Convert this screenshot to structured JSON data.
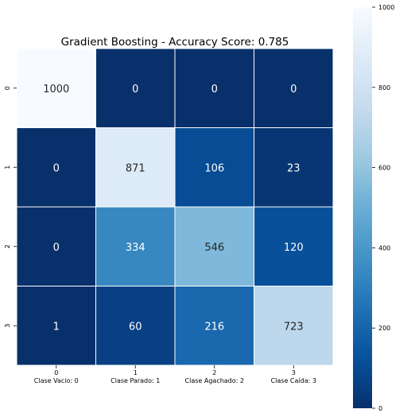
{
  "chart_data": {
    "type": "heatmap",
    "title": "Gradient Boosting - Accuracy Score: 0.785",
    "row_labels": [
      "0",
      "1",
      "2",
      "3"
    ],
    "col_labels": [
      "0\nClase Vacio: 0",
      "1\nClase Parado: 1",
      "2\nClase Agachado: 2",
      "3\nClase Caída: 3"
    ],
    "values": [
      [
        1000,
        0,
        0,
        0
      ],
      [
        0,
        871,
        106,
        23
      ],
      [
        0,
        334,
        546,
        120
      ],
      [
        1,
        60,
        216,
        723
      ]
    ],
    "colorbar": {
      "min": 0,
      "max": 1000,
      "ticks": [
        0,
        200,
        400,
        600,
        800,
        1000
      ]
    },
    "colormap": "Blues_r",
    "colors": {
      "low": "#08306b",
      "high": "#f7fbff"
    }
  }
}
